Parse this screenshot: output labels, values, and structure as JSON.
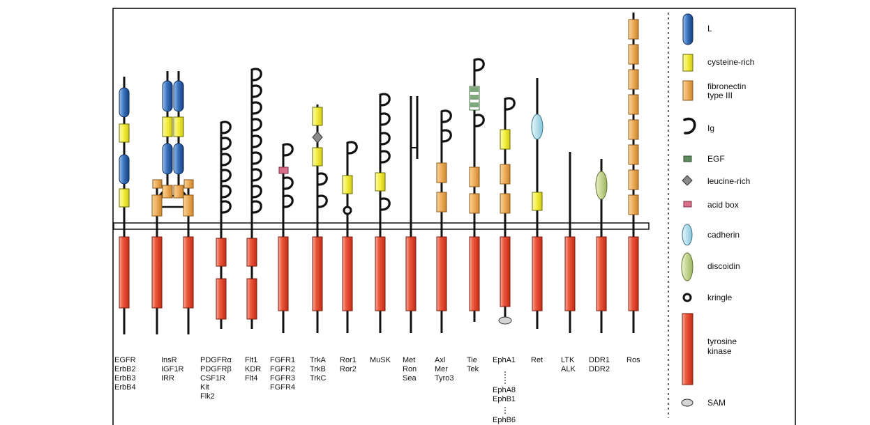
{
  "receptor_labels": [
    [
      "EGFR",
      "ErbB2",
      "ErbB3",
      "ErbB4"
    ],
    [
      "InsR",
      "IGF1R",
      "IRR"
    ],
    [
      "PDGFRα",
      "PDGFRβ",
      "CSF1R",
      "Kit",
      "Flk2"
    ],
    [
      "Flt1",
      "KDR",
      "Flt4"
    ],
    [
      "FGFR1",
      "FGFR2",
      "FGFR3",
      "FGFR4"
    ],
    [
      "TrkA",
      "TrkB",
      "TrkC"
    ],
    [
      "Ror1",
      "Ror2"
    ],
    [
      "MuSK"
    ],
    [
      "Met",
      "Ron",
      "Sea"
    ],
    [
      "Axl",
      "Mer",
      "Tyro3"
    ],
    [
      "Tie",
      "Tek"
    ],
    [
      "EphA1",
      "EphA8",
      "EphB1",
      "EphB6"
    ],
    [
      "Ret"
    ],
    [
      "LTK",
      "ALK"
    ],
    [
      "DDR1",
      "DDR2"
    ],
    [
      "Ros"
    ]
  ],
  "legend": {
    "l": "L",
    "cysteine_rich": "cysteine-rich",
    "fibronectin_1": "fibronectin",
    "fibronectin_2": "type III",
    "ig": "Ig",
    "egf": "EGF",
    "leucine_rich": "leucine-rich",
    "acid_box": "acid box",
    "cadherin": "cadherin",
    "discoidin": "discoidin",
    "kringle": "kringle",
    "tyrosine_kinase_1": "tyrosine",
    "tyrosine_kinase_2": "kinase",
    "sam": "SAM"
  },
  "colors": {
    "l_domain": "#2e62a8",
    "cysteine_rich": "#f2ee3a",
    "fibronectin": "#eeb060",
    "tyrosine_kinase": "#e8452c",
    "egf": "#5c8a5c",
    "leucine_rich": "#777777",
    "acid_box": "#d8708a",
    "cadherin": "#a8dcec",
    "discoidin": "#b8cf7c",
    "sam": "#d4d4d4"
  }
}
